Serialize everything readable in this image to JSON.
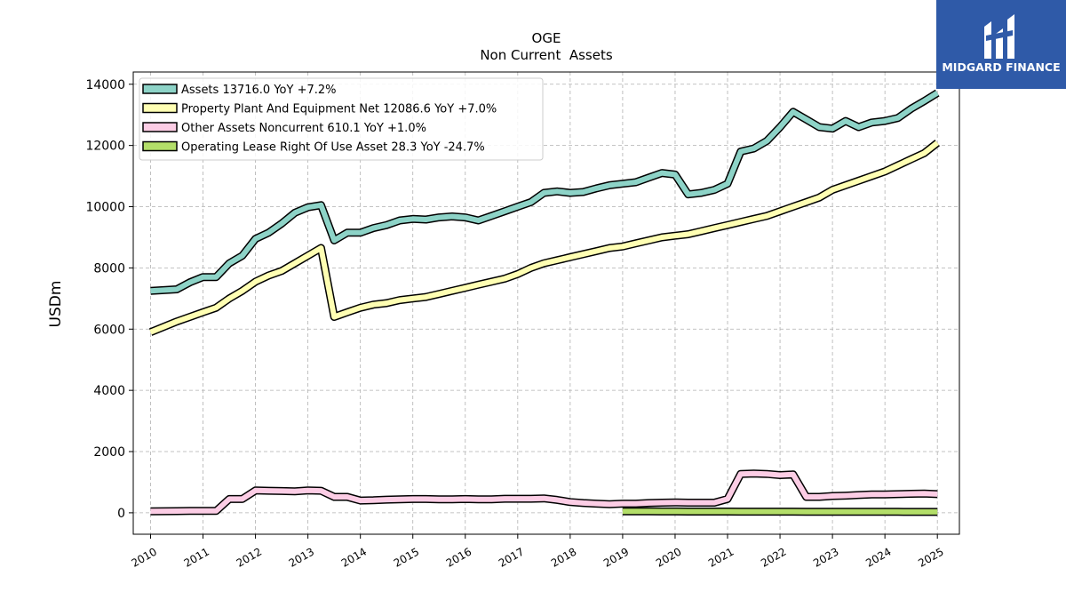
{
  "chart_data": {
    "type": "line",
    "title": "OGE",
    "subtitle": "Non Current  Assets",
    "xlabel": "",
    "ylabel": "USDm",
    "xlim": [
      2009.67,
      2025.42
    ],
    "ylim": [
      -700,
      14400
    ],
    "yticks": [
      0,
      2000,
      4000,
      6000,
      8000,
      10000,
      12000,
      14000
    ],
    "xticks": [
      2010,
      2011,
      2012,
      2013,
      2014,
      2015,
      2016,
      2017,
      2018,
      2019,
      2020,
      2021,
      2022,
      2023,
      2024,
      2025
    ],
    "grid": true,
    "legend_position": "top-left",
    "series": [
      {
        "name": "Assets  13716.0 YoY +7.2%",
        "color": "#8dd3c7",
        "x": [
          2010.0,
          2010.5,
          2010.75,
          2011.0,
          2011.25,
          2011.5,
          2011.75,
          2012.0,
          2012.25,
          2012.5,
          2012.75,
          2013.0,
          2013.25,
          2013.5,
          2013.75,
          2014.0,
          2014.25,
          2014.5,
          2014.75,
          2015.0,
          2015.25,
          2015.5,
          2015.75,
          2016.0,
          2016.25,
          2016.5,
          2016.75,
          2017.0,
          2017.25,
          2017.5,
          2017.75,
          2018.0,
          2018.25,
          2018.5,
          2018.75,
          2019.0,
          2019.25,
          2019.5,
          2019.75,
          2020.0,
          2020.25,
          2020.5,
          2020.75,
          2021.0,
          2021.25,
          2021.5,
          2021.75,
          2022.0,
          2022.25,
          2022.5,
          2022.75,
          2023.0,
          2023.25,
          2023.5,
          2023.75,
          2024.0,
          2024.25,
          2024.5,
          2024.75,
          2025.0
        ],
        "values": [
          7250,
          7300,
          7530,
          7700,
          7700,
          8150,
          8400,
          8950,
          9150,
          9450,
          9800,
          9980,
          10050,
          8900,
          9150,
          9150,
          9300,
          9400,
          9550,
          9600,
          9580,
          9650,
          9680,
          9650,
          9550,
          9700,
          9850,
          10000,
          10150,
          10450,
          10500,
          10450,
          10480,
          10600,
          10700,
          10750,
          10800,
          10950,
          11100,
          11050,
          10400,
          10450,
          10550,
          10750,
          11800,
          11900,
          12150,
          12600,
          13100,
          12850,
          12600,
          12550,
          12800,
          12600,
          12750,
          12800,
          12900,
          13200,
          13450,
          13716
        ]
      },
      {
        "name": "Property Plant And Equipment Net  12086.6 YoY +7.0%",
        "color": "#ffffb3",
        "x": [
          2010.0,
          2010.5,
          2010.75,
          2011.0,
          2011.25,
          2011.5,
          2011.75,
          2012.0,
          2012.25,
          2012.5,
          2012.75,
          2013.0,
          2013.25,
          2013.5,
          2013.75,
          2014.0,
          2014.25,
          2014.5,
          2014.75,
          2015.0,
          2015.25,
          2015.5,
          2015.75,
          2016.0,
          2016.25,
          2016.5,
          2016.75,
          2017.0,
          2017.25,
          2017.5,
          2017.75,
          2018.0,
          2018.25,
          2018.5,
          2018.75,
          2019.0,
          2019.25,
          2019.5,
          2019.75,
          2020.0,
          2020.25,
          2020.5,
          2020.75,
          2021.0,
          2021.25,
          2021.5,
          2021.75,
          2022.0,
          2022.25,
          2022.5,
          2022.75,
          2023.0,
          2023.25,
          2023.5,
          2023.75,
          2024.0,
          2024.25,
          2024.5,
          2024.75,
          2025.0
        ],
        "values": [
          5900,
          6250,
          6400,
          6550,
          6700,
          7000,
          7250,
          7550,
          7750,
          7900,
          8150,
          8400,
          8650,
          6400,
          6550,
          6700,
          6800,
          6850,
          6950,
          7000,
          7050,
          7150,
          7250,
          7350,
          7450,
          7550,
          7650,
          7800,
          8000,
          8150,
          8250,
          8350,
          8450,
          8550,
          8650,
          8700,
          8800,
          8900,
          9000,
          9050,
          9100,
          9200,
          9300,
          9400,
          9500,
          9600,
          9700,
          9850,
          10000,
          10150,
          10300,
          10550,
          10700,
          10850,
          11000,
          11150,
          11350,
          11550,
          11750,
          12087
        ]
      },
      {
        "name": "Other Assets Noncurrent  610.1 YoY +1.0%",
        "color": "#fccde5",
        "x": [
          2010.0,
          2010.5,
          2010.75,
          2011.0,
          2011.25,
          2011.5,
          2011.75,
          2012.0,
          2012.25,
          2012.5,
          2012.75,
          2013.0,
          2013.25,
          2013.5,
          2013.75,
          2014.0,
          2014.25,
          2014.5,
          2014.75,
          2015.0,
          2015.25,
          2015.5,
          2015.75,
          2016.0,
          2016.25,
          2016.5,
          2016.75,
          2017.0,
          2017.25,
          2017.5,
          2017.75,
          2018.0,
          2018.25,
          2018.5,
          2018.75,
          2019.0,
          2019.25,
          2019.5,
          2019.75,
          2020.0,
          2020.25,
          2020.5,
          2020.75,
          2021.0,
          2021.25,
          2021.5,
          2021.75,
          2022.0,
          2022.25,
          2022.5,
          2022.75,
          2023.0,
          2023.25,
          2023.5,
          2023.75,
          2024.0,
          2024.25,
          2024.5,
          2024.75,
          2025.0
        ],
        "values": [
          50,
          55,
          60,
          60,
          60,
          450,
          450,
          730,
          720,
          710,
          700,
          730,
          720,
          520,
          520,
          400,
          410,
          430,
          440,
          450,
          450,
          440,
          440,
          450,
          440,
          440,
          460,
          460,
          460,
          470,
          420,
          350,
          320,
          300,
          280,
          300,
          300,
          320,
          330,
          340,
          330,
          330,
          330,
          450,
          1270,
          1280,
          1270,
          1230,
          1250,
          520,
          520,
          550,
          560,
          580,
          600,
          600,
          610,
          620,
          630,
          610
        ]
      },
      {
        "name": "Operating Lease Right Of Use Asset  28.3 YoY -24.7%",
        "color": "#b3de69",
        "x": [
          2019.0,
          2019.25,
          2019.5,
          2019.75,
          2020.0,
          2020.25,
          2020.5,
          2020.75,
          2021.0,
          2021.25,
          2021.5,
          2021.75,
          2022.0,
          2022.25,
          2022.5,
          2022.75,
          2023.0,
          2023.25,
          2023.5,
          2023.75,
          2024.0,
          2024.25,
          2024.5,
          2024.75,
          2025.0
        ],
        "values": [
          45,
          45,
          45,
          42,
          42,
          40,
          40,
          40,
          40,
          38,
          38,
          38,
          38,
          38,
          36,
          36,
          36,
          34,
          34,
          32,
          32,
          31,
          30,
          29,
          28
        ]
      }
    ]
  },
  "brand": {
    "logo_text": "MIDGARD FINANCE",
    "logo_color": "#2f5aa8"
  }
}
